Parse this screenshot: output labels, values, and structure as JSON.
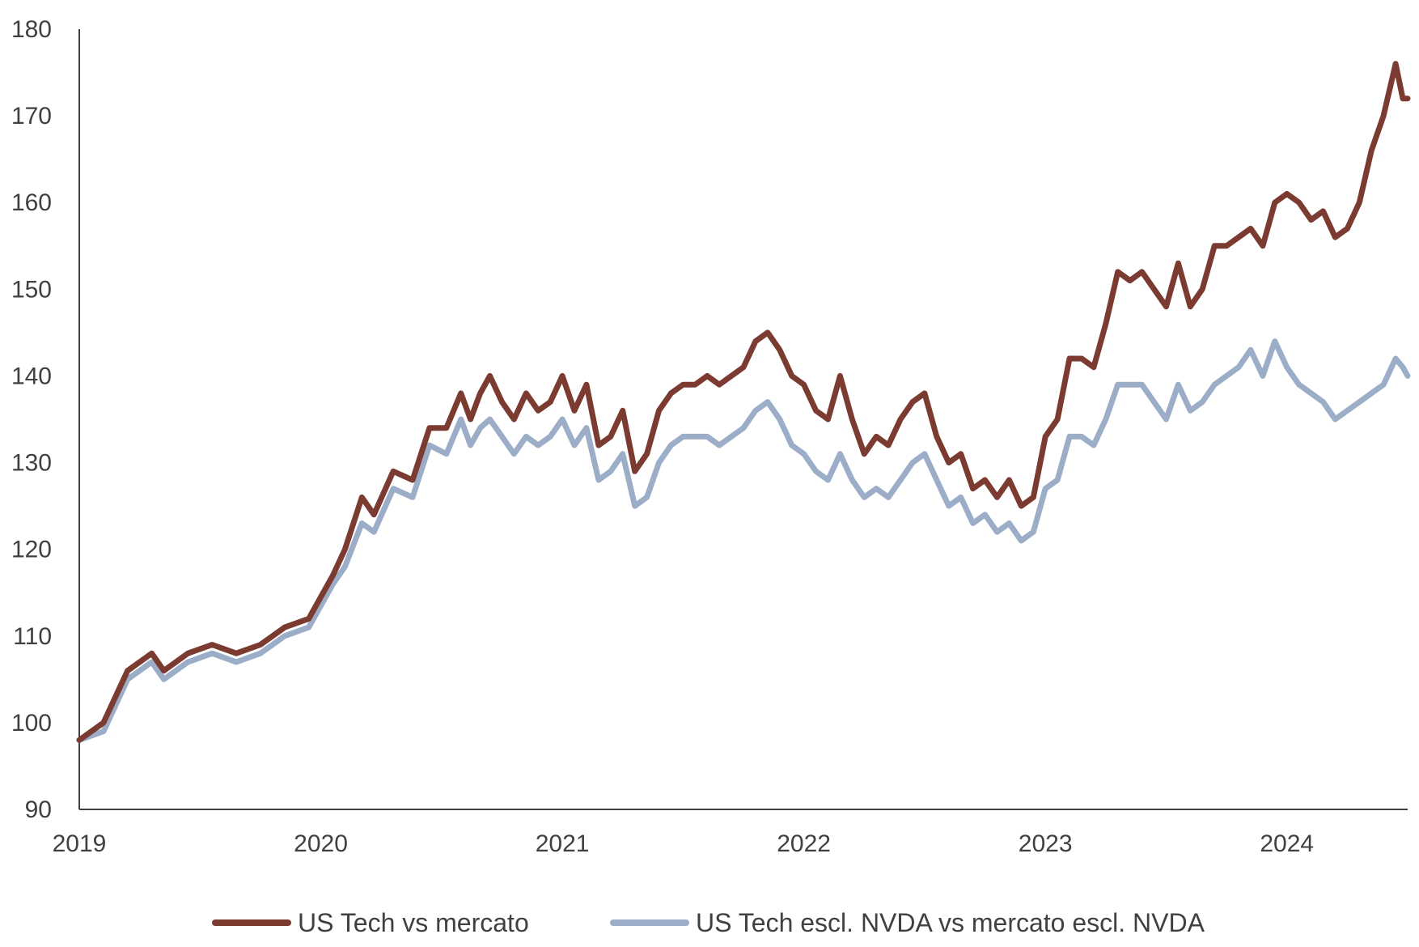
{
  "chart_data": {
    "type": "line",
    "title": "",
    "xlabel": "",
    "ylabel": "",
    "ylim": [
      90,
      180
    ],
    "xlim": [
      2019.0,
      2024.5
    ],
    "y_ticks": [
      "90",
      "100",
      "110",
      "120",
      "130",
      "140",
      "150",
      "160",
      "170",
      "180"
    ],
    "x_ticks": [
      "2019",
      "2020",
      "2021",
      "2022",
      "2023",
      "2024"
    ],
    "grid": false,
    "legend_position": "bottom",
    "series": [
      {
        "name": "US Tech vs mercato",
        "color": "#7b3b31",
        "x": [
          2019.0,
          2019.1,
          2019.2,
          2019.3,
          2019.35,
          2019.45,
          2019.55,
          2019.65,
          2019.75,
          2019.85,
          2019.95,
          2020.05,
          2020.1,
          2020.17,
          2020.22,
          2020.3,
          2020.38,
          2020.45,
          2020.52,
          2020.58,
          2020.62,
          2020.66,
          2020.7,
          2020.75,
          2020.8,
          2020.85,
          2020.9,
          2020.95,
          2021.0,
          2021.05,
          2021.1,
          2021.15,
          2021.2,
          2021.25,
          2021.3,
          2021.35,
          2021.4,
          2021.45,
          2021.5,
          2021.55,
          2021.6,
          2021.65,
          2021.7,
          2021.75,
          2021.8,
          2021.85,
          2021.9,
          2021.95,
          2022.0,
          2022.05,
          2022.1,
          2022.15,
          2022.2,
          2022.25,
          2022.3,
          2022.35,
          2022.4,
          2022.45,
          2022.5,
          2022.55,
          2022.6,
          2022.65,
          2022.7,
          2022.75,
          2022.8,
          2022.85,
          2022.9,
          2022.95,
          2023.0,
          2023.05,
          2023.1,
          2023.15,
          2023.2,
          2023.25,
          2023.3,
          2023.35,
          2023.4,
          2023.45,
          2023.5,
          2023.55,
          2023.6,
          2023.65,
          2023.7,
          2023.75,
          2023.8,
          2023.85,
          2023.9,
          2023.95,
          2024.0,
          2024.05,
          2024.1,
          2024.15,
          2024.2,
          2024.25,
          2024.3,
          2024.35,
          2024.4,
          2024.45,
          2024.48,
          2024.5
        ],
        "y": [
          98,
          100,
          106,
          108,
          106,
          108,
          109,
          108,
          109,
          111,
          112,
          117,
          120,
          126,
          124,
          129,
          128,
          134,
          134,
          138,
          135,
          138,
          140,
          137,
          135,
          138,
          136,
          137,
          140,
          136,
          139,
          132,
          133,
          136,
          129,
          131,
          136,
          138,
          139,
          139,
          140,
          139,
          140,
          141,
          144,
          145,
          143,
          140,
          139,
          136,
          135,
          140,
          135,
          131,
          133,
          132,
          135,
          137,
          138,
          133,
          130,
          131,
          127,
          128,
          126,
          128,
          125,
          126,
          133,
          135,
          142,
          142,
          141,
          146,
          152,
          151,
          152,
          150,
          148,
          153,
          148,
          150,
          155,
          155,
          156,
          157,
          155,
          160,
          161,
          160,
          158,
          159,
          156,
          157,
          160,
          166,
          170,
          176,
          172,
          172
        ]
      },
      {
        "name": "US Tech escl. NVDA vs mercato escl. NVDA",
        "color": "#9caec7",
        "x": [
          2019.0,
          2019.1,
          2019.2,
          2019.3,
          2019.35,
          2019.45,
          2019.55,
          2019.65,
          2019.75,
          2019.85,
          2019.95,
          2020.05,
          2020.1,
          2020.17,
          2020.22,
          2020.3,
          2020.38,
          2020.45,
          2020.52,
          2020.58,
          2020.62,
          2020.66,
          2020.7,
          2020.75,
          2020.8,
          2020.85,
          2020.9,
          2020.95,
          2021.0,
          2021.05,
          2021.1,
          2021.15,
          2021.2,
          2021.25,
          2021.3,
          2021.35,
          2021.4,
          2021.45,
          2021.5,
          2021.55,
          2021.6,
          2021.65,
          2021.7,
          2021.75,
          2021.8,
          2021.85,
          2021.9,
          2021.95,
          2022.0,
          2022.05,
          2022.1,
          2022.15,
          2022.2,
          2022.25,
          2022.3,
          2022.35,
          2022.4,
          2022.45,
          2022.5,
          2022.55,
          2022.6,
          2022.65,
          2022.7,
          2022.75,
          2022.8,
          2022.85,
          2022.9,
          2022.95,
          2023.0,
          2023.05,
          2023.1,
          2023.15,
          2023.2,
          2023.25,
          2023.3,
          2023.35,
          2023.4,
          2023.45,
          2023.5,
          2023.55,
          2023.6,
          2023.65,
          2023.7,
          2023.75,
          2023.8,
          2023.85,
          2023.9,
          2023.95,
          2024.0,
          2024.05,
          2024.1,
          2024.15,
          2024.2,
          2024.25,
          2024.3,
          2024.35,
          2024.4,
          2024.45,
          2024.48,
          2024.5
        ],
        "y": [
          98,
          99,
          105,
          107,
          105,
          107,
          108,
          107,
          108,
          110,
          111,
          116,
          118,
          123,
          122,
          127,
          126,
          132,
          131,
          135,
          132,
          134,
          135,
          133,
          131,
          133,
          132,
          133,
          135,
          132,
          134,
          128,
          129,
          131,
          125,
          126,
          130,
          132,
          133,
          133,
          133,
          132,
          133,
          134,
          136,
          137,
          135,
          132,
          131,
          129,
          128,
          131,
          128,
          126,
          127,
          126,
          128,
          130,
          131,
          128,
          125,
          126,
          123,
          124,
          122,
          123,
          121,
          122,
          127,
          128,
          133,
          133,
          132,
          135,
          139,
          139,
          139,
          137,
          135,
          139,
          136,
          137,
          139,
          140,
          141,
          143,
          140,
          144,
          141,
          139,
          138,
          137,
          135,
          136,
          137,
          138,
          139,
          142,
          141,
          140
        ]
      }
    ]
  }
}
